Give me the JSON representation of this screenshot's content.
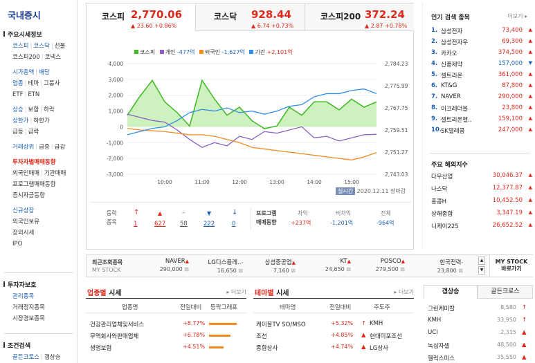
{
  "sidebar": {
    "title": "국내증시",
    "s1": "주요시세정보",
    "l1a": "코스피",
    "l1b": "코스닥",
    "l1c": "선물",
    "l2a": "코스피200",
    "l2b": "코넥스",
    "l3a": "시가총액",
    "l3b": "배당",
    "l4a": "업종",
    "l4b": "테마",
    "l4c": "그룹사",
    "l5a": "ETF",
    "l5b": "ETN",
    "l6a": "상승",
    "l6b": "보합",
    "l6c": "하락",
    "l7a": "상한가",
    "l7b": "하한가",
    "l8a": "급등",
    "l8b": "급락",
    "l9a": "거래상위",
    "l9b": "급증",
    "l9c": "급감",
    "l10": "투자자별매매동향",
    "l11a": "외국인매매",
    "l11b": "기관매매",
    "l12": "프로그램매매동향",
    "l13": "증시자금동향",
    "l14": "신규상장",
    "l15": "외국인보유",
    "l16": "장외시세",
    "l17": "IPO",
    "s2": "투자자보호",
    "l18": "관리종목",
    "l19": "거래정지종목",
    "l20": "시장경보종목",
    "s3": "조건검색",
    "l21a": "골든크로스",
    "l21b": "갭상승"
  },
  "tabs": [
    {
      "name": "코스피",
      "value": "2,770.06",
      "change": "▲ 23.60 +0.86%"
    },
    {
      "name": "코스닥",
      "value": "928.44",
      "change": "▲ 6.74 +0.73%"
    },
    {
      "name": "코스피200",
      "value": "372.24",
      "change": "▲ 2.87 +0.78%"
    }
  ],
  "legend": {
    "kospi": "코스피",
    "indiv": "개인",
    "indiv_v": "-477억",
    "foreign": "외국인",
    "foreign_v": "-1,627억",
    "inst": "기관",
    "inst_v": "+2,101억"
  },
  "chart_data": {
    "type": "line",
    "x": [
      "9:00",
      "9:20",
      "9:40",
      "10:00",
      "10:20",
      "10:40",
      "11:00",
      "11:20",
      "11:40",
      "12:00",
      "12:20",
      "12:40",
      "13:00",
      "13:20",
      "13:40",
      "14:00",
      "14:20",
      "14:40",
      "15:00",
      "15:20",
      "15:30"
    ],
    "xticks": [
      "10:00",
      "11:00",
      "12:00",
      "13:00",
      "14:00",
      "15:00"
    ],
    "ylim_left": [
      -3000,
      4000
    ],
    "yticks_left": [
      "4,000",
      "3,000",
      "2,000",
      "1,000",
      "0",
      "-1,000",
      "-2,000",
      "-3,000"
    ],
    "yticks_right": [
      "2,784.23",
      "2,775.99",
      "2,767.75",
      "2,759.51",
      "2,751.27",
      "2,743.03"
    ],
    "series": [
      {
        "name": "코스피",
        "axis": "right",
        "values": [
          2765,
          2772,
          2778,
          2770,
          2766,
          2761,
          2778,
          2771,
          2765,
          2768,
          2763,
          2760,
          2761,
          2768,
          2765,
          2770,
          2770,
          2767,
          2771,
          2768,
          2770
        ]
      },
      {
        "name": "개인",
        "values": [
          800,
          600,
          400,
          300,
          -200,
          -800,
          -1300,
          -1000,
          -1200,
          -600,
          -800,
          -300,
          -400,
          -200,
          0,
          -700,
          -600,
          -900,
          -700,
          -500,
          -477
        ]
      },
      {
        "name": "외국인",
        "values": [
          -100,
          -200,
          -250,
          -300,
          -400,
          -500,
          -500,
          -600,
          -800,
          -1000,
          -1300,
          -1400,
          -1500,
          -1600,
          -1700,
          -1800,
          -1900,
          -2000,
          -2100,
          -1900,
          -1627
        ]
      },
      {
        "name": "기관",
        "values": [
          -500,
          -300,
          -100,
          0,
          400,
          900,
          1100,
          1000,
          1200,
          900,
          1000,
          800,
          1000,
          1300,
          1400,
          1900,
          2100,
          2100,
          2300,
          2400,
          2101
        ]
      }
    ]
  },
  "chart_meta": {
    "realtime": "실시간",
    "date": "2020.12.11",
    "closed": "장마감"
  },
  "stats": {
    "label1": "등락",
    "label2": "종목",
    "up_limit": "1",
    "up": "627",
    "flat": "58",
    "down": "222",
    "down_limit": "0",
    "prog1": "프로그램",
    "prog2": "매매동향",
    "h1": "차익",
    "h2": "비차익",
    "h3": "전체",
    "v1": "+237억",
    "v2": "-1,201억",
    "v3": "-964억"
  },
  "popular": {
    "title": "인기 검색 종목",
    "more": "더보기",
    "items": [
      {
        "rank": "1.",
        "name": "삼성전자",
        "price": "73,400",
        "dir": "▲"
      },
      {
        "rank": "2.",
        "name": "삼성전자우",
        "price": "69,300",
        "dir": "▲"
      },
      {
        "rank": "3.",
        "name": "카카오",
        "price": "374,500",
        "dir": "▲"
      },
      {
        "rank": "4.",
        "name": "신풍제약",
        "price": "157,000",
        "dir": "▼"
      },
      {
        "rank": "5.",
        "name": "셀트리온",
        "price": "361,000",
        "dir": "▲"
      },
      {
        "rank": "6.",
        "name": "KT&G",
        "price": "87,800",
        "dir": "▲"
      },
      {
        "rank": "7.",
        "name": "NAVER",
        "price": "290,000",
        "dir": "▲"
      },
      {
        "rank": "8.",
        "name": "이크레더블",
        "price": "23,800",
        "dir": "▲"
      },
      {
        "rank": "9.",
        "name": "셀트리온헬..",
        "price": "159,100",
        "dir": "▲"
      },
      {
        "rank": "10.",
        "name": "SK텔레콤",
        "price": "247,000",
        "dir": "▲"
      }
    ],
    "world_title": "주요 해외지수",
    "world": [
      {
        "name": "다우산업",
        "value": "30,046.37"
      },
      {
        "name": "나스닥",
        "value": "12,377.87"
      },
      {
        "name": "홍콩H",
        "value": "10,452.50"
      },
      {
        "name": "상해종합",
        "value": "3,347.19"
      },
      {
        "name": "니케이225",
        "value": "26,652.52"
      }
    ]
  },
  "recent": {
    "label1": "최근조회종목",
    "label2": "MY STOCK",
    "items": [
      {
        "name": "NAVER",
        "dir": "▲",
        "price": "290,000"
      },
      {
        "name": "LG디스플레..",
        "dir": "-",
        "price": "16,650"
      },
      {
        "name": "삼성중공업",
        "dir": "▲",
        "price": "7,160"
      },
      {
        "name": "KT",
        "dir": "▲",
        "price": "24,650"
      },
      {
        "name": "POSCO",
        "dir": "▲",
        "price": "279,500"
      },
      {
        "name": "한국전력",
        "dir": "-",
        "price": "23,800"
      }
    ],
    "mystock1": "MY STOCK",
    "mystock2": "바로가기"
  },
  "sector": {
    "title_a": "업종별",
    "title_b": " 시세",
    "more": "더보기",
    "h1": "업종명",
    "h2": "전일대비",
    "h3": "등락그래프",
    "rows": [
      {
        "name": "건강관리업체및서비스",
        "pct": "+8.77%",
        "bar": 0.877
      },
      {
        "name": "무역회사와판매업체",
        "pct": "+6.78%",
        "bar": 0.678
      },
      {
        "name": "생명보험",
        "pct": "+4.51%",
        "bar": 0.451
      }
    ]
  },
  "theme": {
    "title_a": "테마별",
    "title_b": " 시세",
    "more": "더보기",
    "h1": "테마명",
    "h2": "전일대비",
    "h3": "주도주",
    "rows": [
      {
        "name": "케이블TV SO/MSO",
        "pct": "+5.32%",
        "arrow": "↑",
        "lead": "KMH"
      },
      {
        "name": "조선",
        "pct": "+4.85%",
        "arrow": "▲",
        "lead": "현대미포조선"
      },
      {
        "name": "종합상사",
        "pct": "+4.74%",
        "arrow": "▲",
        "lead": "LG상사"
      }
    ]
  },
  "gap": {
    "tab1": "갭상승",
    "tab2": "골든크로스",
    "rows": [
      {
        "name": "그린케미칼",
        "price": "8,580",
        "arrow": "↑"
      },
      {
        "name": "KMH",
        "price": "33,950",
        "arrow": "↑"
      },
      {
        "name": "UCI",
        "price": "2,315",
        "arrow": "▲"
      },
      {
        "name": "녹십자셀",
        "price": "48,500",
        "arrow": "▲"
      },
      {
        "name": "헬릭스미스",
        "price": "35,550",
        "arrow": "▲"
      }
    ]
  },
  "colors": {
    "up": "#e0281a",
    "down": "#1a5fb4",
    "kospi": "#3db821",
    "indiv": "#8a5fc0",
    "foreign": "#f28a1e",
    "inst": "#2f8fe6"
  }
}
